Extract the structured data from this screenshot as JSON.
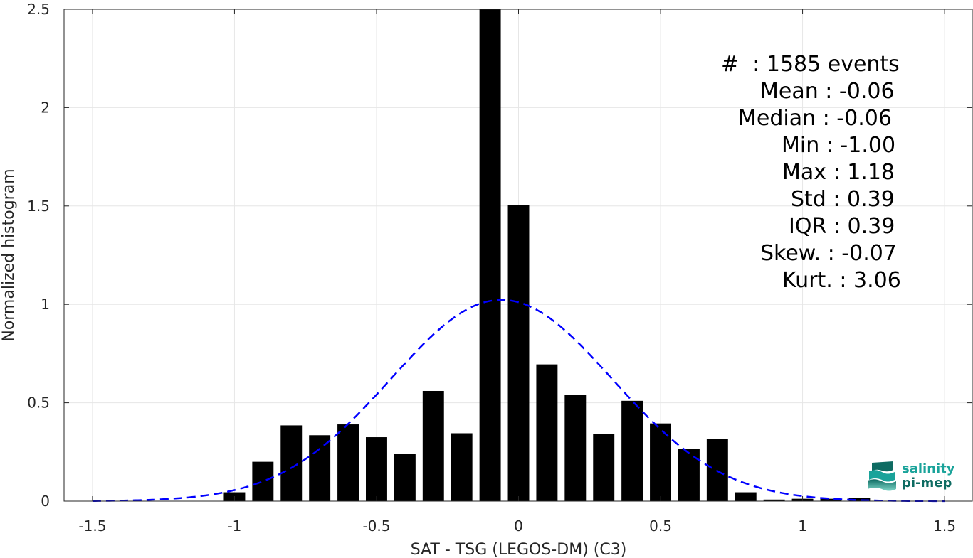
{
  "chart_data": {
    "type": "bar",
    "xlabel": "SAT - TSG (LEGOS-DM) (C3)",
    "ylabel": "Normalized histogram",
    "xlim": [
      -1.6,
      1.6
    ],
    "ylim": [
      0,
      2.5
    ],
    "xticks": [
      -1.5,
      -1,
      -0.5,
      0,
      0.5,
      1,
      1.5
    ],
    "xtick_labels": [
      "-1.5",
      "-1",
      "-0.5",
      "0",
      "0.5",
      "1",
      "1.5"
    ],
    "yticks": [
      0,
      0.5,
      1,
      1.5,
      2,
      2.5
    ],
    "ytick_labels": [
      "0",
      "0.5",
      "1",
      "1.5",
      "2",
      "2.5"
    ],
    "grid": true,
    "bar_width": 0.075,
    "bar_color": "#000000",
    "x": [
      -1.0,
      -0.9,
      -0.8,
      -0.7,
      -0.6,
      -0.5,
      -0.4,
      -0.3,
      -0.2,
      -0.1,
      0.0,
      0.1,
      0.2,
      0.3,
      0.4,
      0.5,
      0.6,
      0.7,
      0.8,
      0.9,
      1.0,
      1.1,
      1.2
    ],
    "values": [
      0.045,
      0.2,
      0.385,
      0.335,
      0.39,
      0.325,
      0.24,
      0.56,
      0.345,
      2.5,
      1.505,
      0.695,
      0.54,
      0.34,
      0.51,
      0.395,
      0.265,
      0.315,
      0.045,
      0.008,
      0.012,
      0.012,
      0.018
    ],
    "fit_curve": {
      "type": "gaussian",
      "mean": -0.06,
      "std": 0.39,
      "color": "#0000ff",
      "style": "dashed",
      "x_range": [
        -1.5,
        1.5
      ]
    },
    "annotations": [
      "#  : 1585 events",
      "Mean : -0.06",
      "Median : -0.06",
      "Min : -1.00",
      "Max : 1.18",
      "Std : 0.39",
      "IQR : 0.39",
      "Skew. : -0.07",
      "Kurt. : 3.06"
    ]
  },
  "logo": {
    "line1": "salinity",
    "line2": "pi-mep",
    "color1": "#1aa39a",
    "color2": "#0e6b62"
  }
}
